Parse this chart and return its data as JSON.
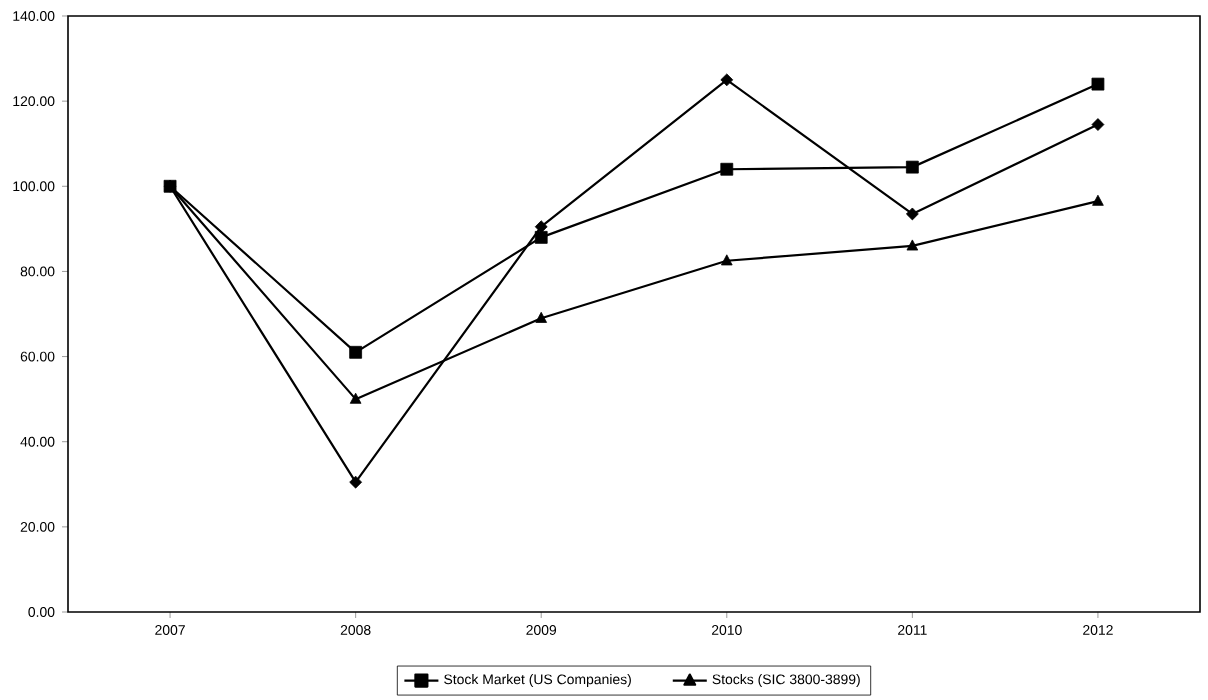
{
  "chart_data": {
    "type": "line",
    "categories": [
      "2007",
      "2008",
      "2009",
      "2010",
      "2011",
      "2012"
    ],
    "series": [
      {
        "color": "#000000",
        "marker": "diamond",
        "values": [
          100,
          30.5,
          90.5,
          125,
          93.5,
          114.5
        ]
      },
      {
        "name": "Stock Market (US Companies)",
        "color": "#000000",
        "marker": "square",
        "values": [
          100,
          61,
          88,
          104,
          104.5,
          124
        ]
      },
      {
        "name": "Stocks (SIC 3800-3899)",
        "color": "#000000",
        "marker": "triangle",
        "values": [
          100,
          50,
          69,
          82.5,
          86,
          96.5
        ]
      }
    ],
    "ylim": [
      0,
      140
    ],
    "yticks": [
      {
        "value": 0,
        "label": "0.00"
      },
      {
        "value": 20,
        "label": "20.00"
      },
      {
        "value": 40,
        "label": "40.00"
      },
      {
        "value": 60,
        "label": "60.00"
      },
      {
        "value": 80,
        "label": "80.00"
      },
      {
        "value": 100,
        "label": "100.00"
      },
      {
        "value": 120,
        "label": "120.00"
      },
      {
        "value": 140,
        "label": "140.00"
      }
    ],
    "legend": "bottom",
    "line_style": "solid",
    "grid": false
  }
}
